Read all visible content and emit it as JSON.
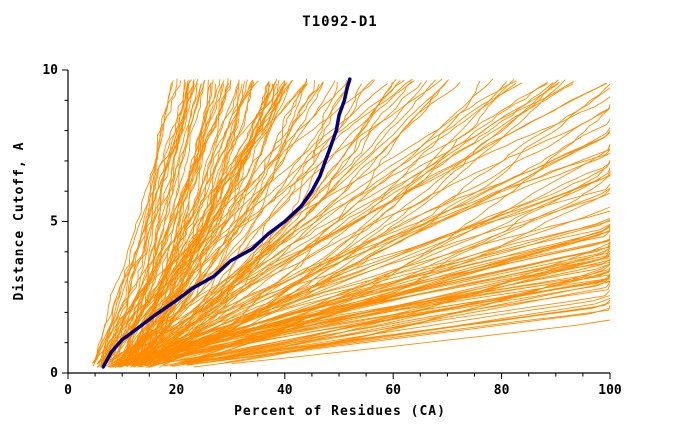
{
  "chart_data": {
    "type": "line",
    "title": "T1092-D1",
    "xlabel": "Percent of Residues (CA)",
    "ylabel": "Distance Cutoff, A",
    "xlim": [
      0,
      100
    ],
    "ylim": [
      0,
      10
    ],
    "xticks": [
      0,
      20,
      40,
      60,
      80,
      100
    ],
    "yticks": [
      0,
      5,
      10
    ],
    "x_minor_step": 5,
    "y_minor_step": 1,
    "grid": false,
    "legend": null,
    "colors": {
      "ensemble": "#ff8c00",
      "highlight": "#000080",
      "axis": "#000000",
      "background": "#ffffff"
    },
    "series": [
      {
        "name": "predictions-ensemble",
        "style": "ensemble",
        "color": "#ff8c00",
        "count": 200,
        "seed": 1092,
        "start_percent_range": [
          3.5,
          13
        ],
        "amplitude_range": [
          12,
          450
        ],
        "shape_exponent_range": [
          0.5,
          1.5
        ],
        "distance_range": [
          0.2,
          9.7
        ],
        "description": "approx. 200 orange cumulative curves: percent of CA residues under each distance cutoff, fanning from lower-left knot (~4-13% at 0.2A) to the top edge (15-98% at 10A) or right edge (100% reached between ~1.5A and 10A)"
      },
      {
        "name": "highlight-model",
        "style": "thick",
        "color": "#000080",
        "width": 3.5,
        "points": [
          [
            6.5,
            0.2
          ],
          [
            8,
            0.7
          ],
          [
            10,
            1.1
          ],
          [
            13,
            1.5
          ],
          [
            16,
            1.9
          ],
          [
            20,
            2.4
          ],
          [
            23,
            2.8
          ],
          [
            27,
            3.2
          ],
          [
            30,
            3.7
          ],
          [
            34,
            4.1
          ],
          [
            37,
            4.6
          ],
          [
            40,
            5.0
          ],
          [
            43,
            5.5
          ],
          [
            45,
            6.0
          ],
          [
            46.5,
            6.5
          ],
          [
            47.5,
            7.0
          ],
          [
            48.5,
            7.5
          ],
          [
            49.5,
            8.0
          ],
          [
            50,
            8.5
          ],
          [
            51,
            9.0
          ],
          [
            51.5,
            9.4
          ],
          [
            52,
            9.7
          ]
        ]
      }
    ]
  }
}
